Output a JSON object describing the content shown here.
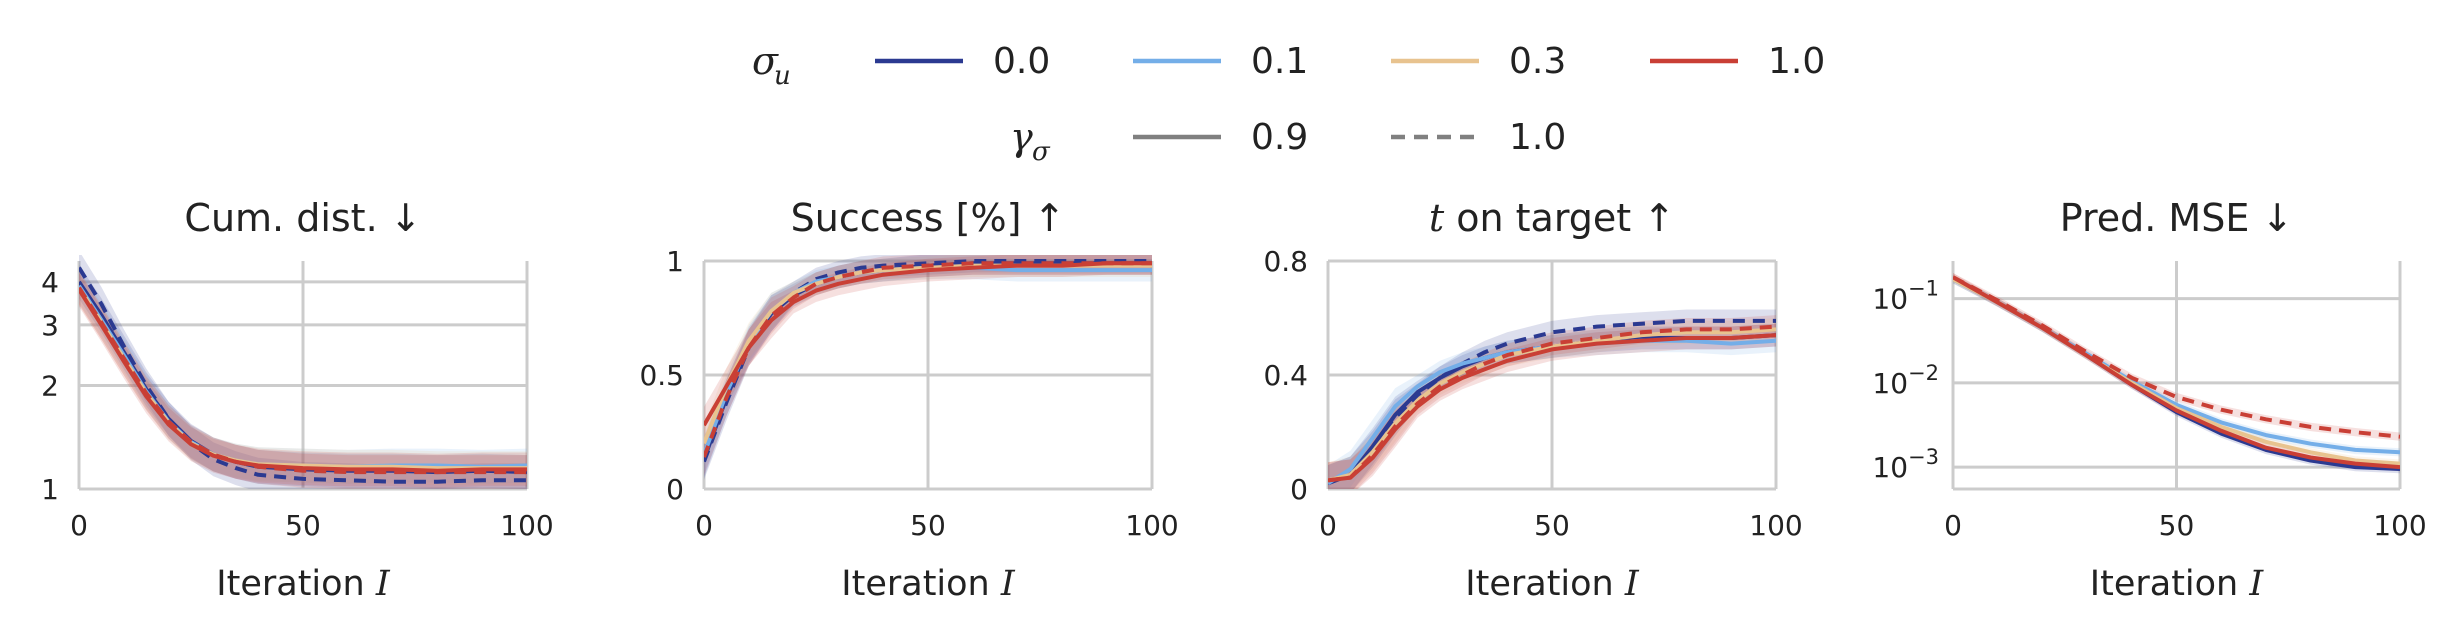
{
  "legend": {
    "sigma_symbol": "σ",
    "sigma_sub": "u",
    "gamma_symbol": "γ",
    "gamma_sub": "σ",
    "sigma_entries": [
      {
        "label": "0.0",
        "color": "#2b3a91"
      },
      {
        "label": "0.1",
        "color": "#74aee8"
      },
      {
        "label": "0.3",
        "color": "#e8c38f"
      },
      {
        "label": "1.0",
        "color": "#c93f35"
      }
    ],
    "gamma_entries": [
      {
        "label": "0.9",
        "style": "solid",
        "color": "#808080"
      },
      {
        "label": "1.0",
        "style": "dashed",
        "color": "#808080"
      }
    ]
  },
  "chart_data": [
    {
      "type": "line",
      "title": "Cum. dist. ↓",
      "xlabel": "Iteration",
      "xlabel_symbol": "I",
      "xlim": [
        0,
        100
      ],
      "xticks": [
        {
          "v": 0,
          "label": "0"
        },
        {
          "v": 50,
          "label": "50"
        },
        {
          "v": 100,
          "label": "100"
        }
      ],
      "yscale": "log",
      "ylim": [
        1,
        4.6
      ],
      "yticks": [
        {
          "v": 1,
          "label": "1"
        },
        {
          "v": 2,
          "label": "2"
        },
        {
          "v": 3,
          "label": "3"
        },
        {
          "v": 4,
          "label": "4"
        }
      ],
      "ytick_sup": [],
      "x": [
        0,
        5,
        10,
        15,
        20,
        25,
        30,
        35,
        40,
        50,
        60,
        70,
        80,
        90,
        100
      ],
      "series": [
        {
          "sigma": "0.0",
          "gamma": "0.9",
          "values": [
            4.0,
            3.2,
            2.5,
            1.95,
            1.6,
            1.38,
            1.26,
            1.2,
            1.16,
            1.14,
            1.13,
            1.13,
            1.12,
            1.13,
            1.12
          ]
        },
        {
          "sigma": "0.0",
          "gamma": "1.0",
          "values": [
            4.4,
            3.45,
            2.6,
            2.0,
            1.6,
            1.36,
            1.22,
            1.15,
            1.1,
            1.07,
            1.06,
            1.05,
            1.05,
            1.06,
            1.06
          ]
        },
        {
          "sigma": "0.1",
          "gamma": "0.9",
          "values": [
            3.9,
            3.1,
            2.45,
            1.92,
            1.57,
            1.37,
            1.26,
            1.21,
            1.18,
            1.17,
            1.16,
            1.17,
            1.17,
            1.16,
            1.17
          ]
        },
        {
          "sigma": "0.3",
          "gamma": "0.9",
          "values": [
            3.85,
            3.05,
            2.4,
            1.9,
            1.56,
            1.36,
            1.26,
            1.21,
            1.18,
            1.17,
            1.16,
            1.16,
            1.15,
            1.15,
            1.15
          ]
        },
        {
          "sigma": "1.0",
          "gamma": "0.9",
          "values": [
            3.8,
            3.0,
            2.35,
            1.86,
            1.54,
            1.35,
            1.25,
            1.2,
            1.17,
            1.15,
            1.14,
            1.14,
            1.13,
            1.14,
            1.14
          ]
        },
        {
          "sigma": "1.0",
          "gamma": "1.0",
          "values": [
            3.85,
            3.05,
            2.4,
            1.9,
            1.57,
            1.37,
            1.26,
            1.2,
            1.16,
            1.13,
            1.12,
            1.12,
            1.12,
            1.12,
            1.12
          ]
        }
      ]
    },
    {
      "type": "line",
      "title": "Success [%] ↑",
      "xlabel": "Iteration",
      "xlabel_symbol": "I",
      "xlim": [
        0,
        100
      ],
      "xticks": [
        {
          "v": 0,
          "label": "0"
        },
        {
          "v": 50,
          "label": "50"
        },
        {
          "v": 100,
          "label": "100"
        }
      ],
      "yscale": "linear",
      "ylim": [
        0,
        1
      ],
      "yticks": [
        {
          "v": 0,
          "label": "0"
        },
        {
          "v": 0.5,
          "label": "0.5"
        },
        {
          "v": 1,
          "label": "1"
        }
      ],
      "ytick_sup": [],
      "x": [
        0,
        5,
        10,
        15,
        20,
        25,
        30,
        35,
        40,
        50,
        60,
        70,
        80,
        90,
        100
      ],
      "series": [
        {
          "sigma": "0.0",
          "gamma": "0.9",
          "values": [
            0.13,
            0.4,
            0.63,
            0.77,
            0.85,
            0.9,
            0.93,
            0.95,
            0.96,
            0.98,
            0.99,
            0.99,
            0.99,
            0.99,
            0.99
          ]
        },
        {
          "sigma": "0.0",
          "gamma": "1.0",
          "values": [
            0.12,
            0.38,
            0.62,
            0.77,
            0.86,
            0.92,
            0.95,
            0.97,
            0.98,
            0.99,
            1.0,
            1.0,
            1.0,
            1.0,
            1.0
          ]
        },
        {
          "sigma": "0.1",
          "gamma": "0.9",
          "values": [
            0.15,
            0.42,
            0.64,
            0.78,
            0.86,
            0.91,
            0.93,
            0.95,
            0.96,
            0.97,
            0.97,
            0.96,
            0.96,
            0.96,
            0.96
          ]
        },
        {
          "sigma": "0.3",
          "gamma": "0.9",
          "values": [
            0.2,
            0.45,
            0.65,
            0.78,
            0.86,
            0.9,
            0.93,
            0.95,
            0.96,
            0.97,
            0.98,
            0.98,
            0.98,
            0.98,
            0.98
          ]
        },
        {
          "sigma": "1.0",
          "gamma": "0.9",
          "values": [
            0.28,
            0.45,
            0.62,
            0.74,
            0.82,
            0.87,
            0.9,
            0.92,
            0.94,
            0.96,
            0.97,
            0.98,
            0.98,
            0.99,
            0.99
          ]
        },
        {
          "sigma": "1.0",
          "gamma": "1.0",
          "values": [
            0.14,
            0.4,
            0.62,
            0.76,
            0.84,
            0.9,
            0.93,
            0.95,
            0.97,
            0.98,
            0.99,
            0.99,
            0.99,
            0.99,
            0.99
          ]
        }
      ]
    },
    {
      "type": "line",
      "title": "on target ↑",
      "title_symbol": "t",
      "xlabel": "Iteration",
      "xlabel_symbol": "I",
      "xlim": [
        0,
        100
      ],
      "xticks": [
        {
          "v": 0,
          "label": "0"
        },
        {
          "v": 50,
          "label": "50"
        },
        {
          "v": 100,
          "label": "100"
        }
      ],
      "yscale": "linear",
      "ylim": [
        0,
        0.8
      ],
      "yticks": [
        {
          "v": 0,
          "label": "0"
        },
        {
          "v": 0.4,
          "label": "0.4"
        },
        {
          "v": 0.8,
          "label": "0.8"
        }
      ],
      "ytick_sup": [],
      "x": [
        0,
        5,
        10,
        15,
        20,
        25,
        30,
        35,
        40,
        50,
        60,
        70,
        80,
        90,
        100
      ],
      "series": [
        {
          "sigma": "0.0",
          "gamma": "0.9",
          "values": [
            0.02,
            0.05,
            0.15,
            0.26,
            0.34,
            0.39,
            0.43,
            0.46,
            0.48,
            0.5,
            0.52,
            0.53,
            0.53,
            0.53,
            0.54
          ]
        },
        {
          "sigma": "0.0",
          "gamma": "1.0",
          "values": [
            0.02,
            0.05,
            0.14,
            0.25,
            0.33,
            0.39,
            0.44,
            0.48,
            0.51,
            0.55,
            0.57,
            0.58,
            0.59,
            0.59,
            0.59
          ]
        },
        {
          "sigma": "0.1",
          "gamma": "0.9",
          "values": [
            0.02,
            0.07,
            0.18,
            0.29,
            0.36,
            0.41,
            0.44,
            0.46,
            0.48,
            0.5,
            0.51,
            0.52,
            0.52,
            0.51,
            0.52
          ]
        },
        {
          "sigma": "0.3",
          "gamma": "0.9",
          "values": [
            0.03,
            0.05,
            0.13,
            0.23,
            0.31,
            0.37,
            0.41,
            0.44,
            0.47,
            0.5,
            0.52,
            0.54,
            0.55,
            0.55,
            0.56
          ]
        },
        {
          "sigma": "1.0",
          "gamma": "0.9",
          "values": [
            0.03,
            0.04,
            0.11,
            0.21,
            0.29,
            0.35,
            0.39,
            0.42,
            0.45,
            0.49,
            0.51,
            0.52,
            0.53,
            0.53,
            0.54
          ]
        },
        {
          "sigma": "1.0",
          "gamma": "1.0",
          "values": [
            0.03,
            0.04,
            0.12,
            0.22,
            0.3,
            0.36,
            0.4,
            0.44,
            0.47,
            0.51,
            0.53,
            0.55,
            0.56,
            0.56,
            0.57
          ]
        }
      ]
    },
    {
      "type": "line",
      "title": "Pred. MSE ↓",
      "xlabel": "Iteration",
      "xlabel_symbol": "I",
      "xlim": [
        0,
        100
      ],
      "xticks": [
        {
          "v": 0,
          "label": "0"
        },
        {
          "v": 50,
          "label": "50"
        },
        {
          "v": 100,
          "label": "100"
        }
      ],
      "yscale": "log",
      "ylim": [
        0.00055,
        0.28
      ],
      "yticks": [
        {
          "v": 0.001,
          "label": "10",
          "sup": "−3"
        },
        {
          "v": 0.01,
          "label": "10",
          "sup": "−2"
        },
        {
          "v": 0.1,
          "label": "10",
          "sup": "−1"
        }
      ],
      "x": [
        0,
        10,
        20,
        30,
        40,
        50,
        60,
        70,
        80,
        90,
        100
      ],
      "series": [
        {
          "sigma": "0.0",
          "gamma": "0.9",
          "values": [
            0.17,
            0.09,
            0.045,
            0.021,
            0.0095,
            0.0045,
            0.0025,
            0.0016,
            0.0012,
            0.001,
            0.00095
          ]
        },
        {
          "sigma": "0.1",
          "gamma": "0.9",
          "values": [
            0.17,
            0.09,
            0.045,
            0.022,
            0.0105,
            0.0055,
            0.0034,
            0.0024,
            0.0019,
            0.0016,
            0.0015
          ]
        },
        {
          "sigma": "0.3",
          "gamma": "0.9",
          "values": [
            0.17,
            0.09,
            0.045,
            0.021,
            0.01,
            0.005,
            0.003,
            0.002,
            0.0015,
            0.0012,
            0.0011
          ]
        },
        {
          "sigma": "1.0",
          "gamma": "0.9",
          "values": [
            0.18,
            0.09,
            0.045,
            0.021,
            0.0095,
            0.0047,
            0.0027,
            0.0017,
            0.0013,
            0.0011,
            0.001
          ]
        },
        {
          "sigma": "1.0",
          "gamma": "1.0",
          "values": [
            0.18,
            0.095,
            0.048,
            0.023,
            0.0115,
            0.0068,
            0.0048,
            0.0037,
            0.003,
            0.0026,
            0.0023
          ]
        }
      ]
    }
  ]
}
